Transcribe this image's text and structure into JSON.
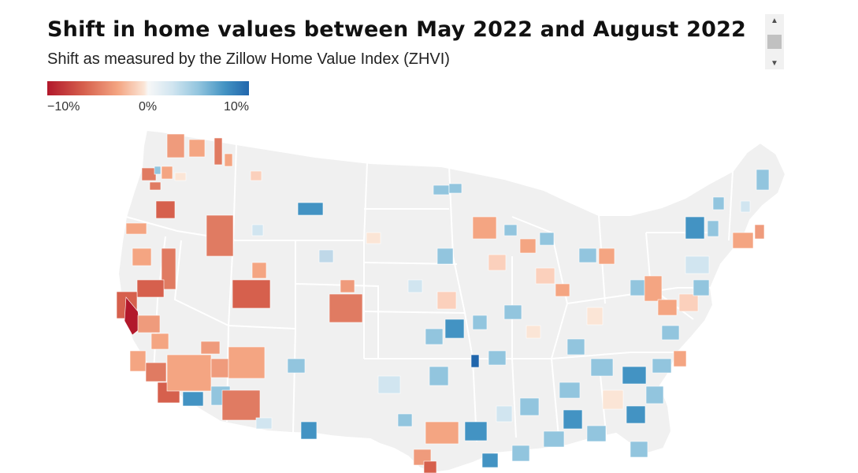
{
  "header": {
    "title": "Shift in home values between May 2022 and August 2022",
    "subtitle": "Shift as measured by the Zillow Home Value Index (ZHVI)"
  },
  "legend": {
    "min_label": "−10%",
    "mid_label": "0%",
    "max_label": "10%",
    "scale": {
      "min": -10,
      "mid": 0,
      "max": 10,
      "unit": "%"
    },
    "colors": [
      "#b2182b",
      "#d6604d",
      "#f4a582",
      "#f7f7f7",
      "#92c5de",
      "#4393c3",
      "#2166ac"
    ]
  },
  "map": {
    "land_color": "#f0f0f0",
    "border_color": "#ffffff"
  },
  "scrollbar": {
    "up_icon": "triangle-up-icon",
    "down_icon": "triangle-down-icon"
  }
}
